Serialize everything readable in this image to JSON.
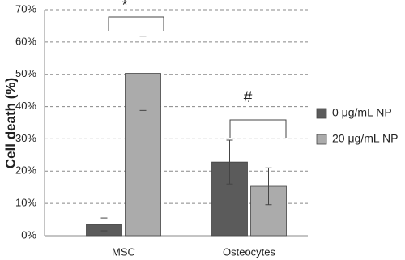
{
  "chart_data": {
    "type": "bar",
    "y_label": "Cell death (%)",
    "categories": [
      "MSC",
      "Osteocytes"
    ],
    "series": [
      {
        "name": "0 μg/mL NP",
        "color": "#5b5b5b",
        "values": [
          3.5,
          22.8
        ],
        "errors": [
          2,
          6.8
        ]
      },
      {
        "name": "20 μg/mL NP",
        "color": "#ababab",
        "values": [
          50.3,
          15.3
        ],
        "errors": [
          11.5,
          5.7
        ]
      }
    ],
    "ylim": [
      0,
      70
    ],
    "yticks": [
      {
        "value": 0,
        "label": "0%"
      },
      {
        "value": 10,
        "label": "10%"
      },
      {
        "value": 20,
        "label": "20%"
      },
      {
        "value": 30,
        "label": "30%"
      },
      {
        "value": 40,
        "label": "40%"
      },
      {
        "value": 50,
        "label": "50%"
      },
      {
        "value": 60,
        "label": "60%"
      },
      {
        "value": 70,
        "label": "70%"
      }
    ],
    "grid": true,
    "legend": "right",
    "annotations": [
      "*",
      "#"
    ]
  }
}
